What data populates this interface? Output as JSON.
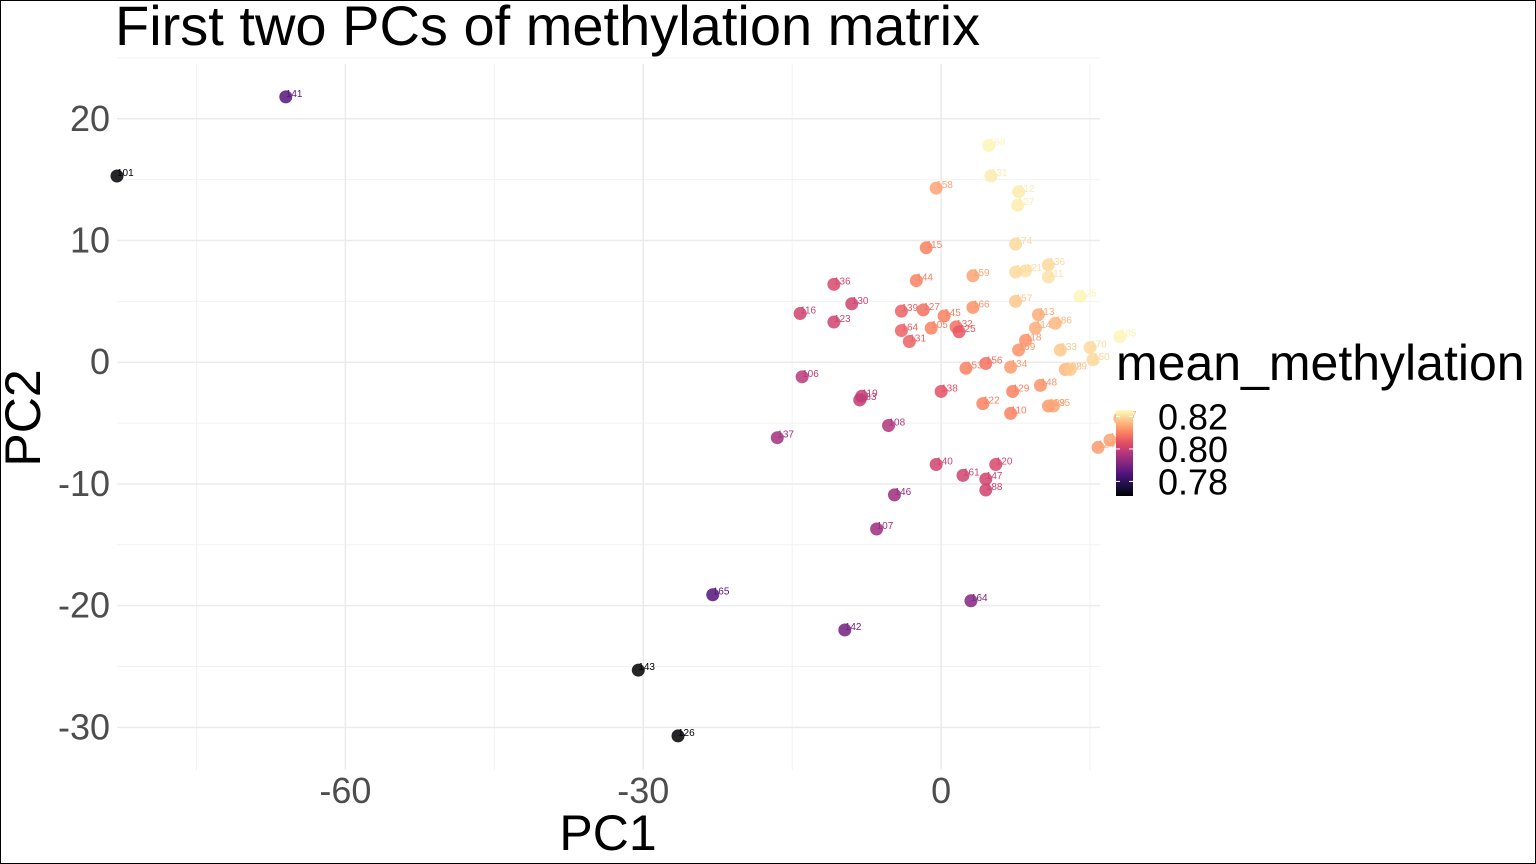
{
  "chart_data": {
    "type": "scatter",
    "title": "First two PCs of methylation matrix",
    "xlabel": "PC1",
    "ylabel": "PC2",
    "xlim": [
      -83,
      16
    ],
    "ylim": [
      -33.5,
      24.5
    ],
    "x_ticks": [
      -60,
      -30,
      0
    ],
    "y_ticks": [
      20,
      10,
      0,
      -10,
      -20,
      -30
    ],
    "grid": true,
    "legend": {
      "title": "mean_methylation",
      "position": "right",
      "range": [
        0.771,
        0.824
      ],
      "ticks": [
        0.82,
        0.8,
        0.78
      ],
      "tick_labels": [
        "0.82",
        "0.80",
        "0.78"
      ]
    },
    "points": [
      {
        "label": "141",
        "x": -66.0,
        "y": 21.8,
        "m": 0.785
      },
      {
        "label": "101",
        "x": -83.0,
        "y": 15.3,
        "m": 0.771
      },
      {
        "label": "143",
        "x": -30.5,
        "y": -25.3,
        "m": 0.771
      },
      {
        "label": "126",
        "x": -26.5,
        "y": -30.7,
        "m": 0.771
      },
      {
        "label": "165",
        "x": -23.0,
        "y": -19.1,
        "m": 0.785
      },
      {
        "label": "142",
        "x": -9.7,
        "y": -22.0,
        "m": 0.789
      },
      {
        "label": "164",
        "x": 3.0,
        "y": -19.6,
        "m": 0.791
      },
      {
        "label": "107",
        "x": -6.5,
        "y": -13.7,
        "m": 0.794
      },
      {
        "label": "146",
        "x": -4.7,
        "y": -10.9,
        "m": 0.794
      },
      {
        "label": "137",
        "x": -16.5,
        "y": -6.2,
        "m": 0.795
      },
      {
        "label": "108",
        "x": -5.3,
        "y": -5.2,
        "m": 0.797
      },
      {
        "label": "106",
        "x": -14.0,
        "y": -1.2,
        "m": 0.798
      },
      {
        "label": "119",
        "x": -8.0,
        "y": -2.8,
        "m": 0.8
      },
      {
        "label": "183",
        "x": -8.2,
        "y": -3.1,
        "m": 0.799
      },
      {
        "label": "116",
        "x": -14.2,
        "y": 4.0,
        "m": 0.801
      },
      {
        "label": "123",
        "x": -10.8,
        "y": 3.3,
        "m": 0.801
      },
      {
        "label": "136",
        "x": -10.8,
        "y": 6.4,
        "m": 0.802
      },
      {
        "label": "130",
        "x": -9.0,
        "y": 4.8,
        "m": 0.801
      },
      {
        "label": "140",
        "x": -0.5,
        "y": -8.4,
        "m": 0.801
      },
      {
        "label": "161",
        "x": 2.2,
        "y": -9.3,
        "m": 0.801
      },
      {
        "label": "147",
        "x": 4.5,
        "y": -9.6,
        "m": 0.801
      },
      {
        "label": "188",
        "x": 4.5,
        "y": -10.5,
        "m": 0.801
      },
      {
        "label": "120",
        "x": 5.5,
        "y": -8.4,
        "m": 0.802
      },
      {
        "label": "138",
        "x": 0.0,
        "y": -2.4,
        "m": 0.804
      },
      {
        "label": "139",
        "x": -4.0,
        "y": 4.2,
        "m": 0.806
      },
      {
        "label": "127",
        "x": -1.8,
        "y": 4.3,
        "m": 0.808
      },
      {
        "label": "164",
        "x": -4.0,
        "y": 2.6,
        "m": 0.806
      },
      {
        "label": "131",
        "x": -3.2,
        "y": 1.7,
        "m": 0.806
      },
      {
        "label": "144",
        "x": -2.5,
        "y": 6.7,
        "m": 0.81
      },
      {
        "label": "115",
        "x": -1.5,
        "y": 9.4,
        "m": 0.81
      },
      {
        "label": "145",
        "x": 0.3,
        "y": 3.8,
        "m": 0.81
      },
      {
        "label": "105",
        "x": -1.0,
        "y": 2.8,
        "m": 0.81
      },
      {
        "label": "132",
        "x": 1.5,
        "y": 2.9,
        "m": 0.808
      },
      {
        "label": "125",
        "x": 1.8,
        "y": 2.5,
        "m": 0.805
      },
      {
        "label": "166",
        "x": 3.2,
        "y": 4.5,
        "m": 0.812
      },
      {
        "label": "158",
        "x": -0.5,
        "y": 14.3,
        "m": 0.814
      },
      {
        "label": "159",
        "x": 3.2,
        "y": 7.1,
        "m": 0.814
      },
      {
        "label": "156",
        "x": 4.5,
        "y": -0.1,
        "m": 0.808
      },
      {
        "label": "153",
        "x": 2.5,
        "y": -0.5,
        "m": 0.81
      },
      {
        "label": "134",
        "x": 7.0,
        "y": -0.4,
        "m": 0.813
      },
      {
        "label": "129",
        "x": 7.2,
        "y": -2.4,
        "m": 0.81
      },
      {
        "label": "122",
        "x": 4.2,
        "y": -3.4,
        "m": 0.81
      },
      {
        "label": "110",
        "x": 7.0,
        "y": -4.2,
        "m": 0.81
      },
      {
        "label": "169",
        "x": 7.8,
        "y": 1.0,
        "m": 0.812
      },
      {
        "label": "148",
        "x": 10.0,
        "y": -1.9,
        "m": 0.812
      },
      {
        "label": "109",
        "x": 10.8,
        "y": -3.6,
        "m": 0.813
      },
      {
        "label": "135",
        "x": 11.3,
        "y": -3.6,
        "m": 0.814
      },
      {
        "label": "118",
        "x": 8.5,
        "y": 1.8,
        "m": 0.812
      },
      {
        "label": "114",
        "x": 9.5,
        "y": 2.8,
        "m": 0.815
      },
      {
        "label": "113",
        "x": 9.8,
        "y": 3.9,
        "m": 0.815
      },
      {
        "label": "186",
        "x": 11.5,
        "y": 3.2,
        "m": 0.816
      },
      {
        "label": "133",
        "x": 12.0,
        "y": 1.0,
        "m": 0.818
      },
      {
        "label": "108",
        "x": 12.5,
        "y": -0.6,
        "m": 0.816
      },
      {
        "label": "129",
        "x": 13.0,
        "y": -0.6,
        "m": 0.818
      },
      {
        "label": "170",
        "x": 15.0,
        "y": 1.2,
        "m": 0.82
      },
      {
        "label": "150",
        "x": 15.3,
        "y": 0.2,
        "m": 0.82
      },
      {
        "label": "157",
        "x": 7.5,
        "y": 5.0,
        "m": 0.818
      },
      {
        "label": "118",
        "x": 17.0,
        "y": -6.4,
        "m": 0.814
      },
      {
        "label": "167",
        "x": 18.0,
        "y": -4.6,
        "m": 0.815
      },
      {
        "label": "124",
        "x": 15.8,
        "y": -7.0,
        "m": 0.813
      },
      {
        "label": "174",
        "x": 7.5,
        "y": 9.7,
        "m": 0.82
      },
      {
        "label": "121",
        "x": 8.5,
        "y": 7.5,
        "m": 0.821
      },
      {
        "label": "103",
        "x": 7.5,
        "y": 7.4,
        "m": 0.82
      },
      {
        "label": "136",
        "x": 10.8,
        "y": 8.0,
        "m": 0.82
      },
      {
        "label": "111",
        "x": 10.8,
        "y": 7.0,
        "m": 0.821
      },
      {
        "label": "112",
        "x": 7.8,
        "y": 14.0,
        "m": 0.822
      },
      {
        "label": "127",
        "x": 7.7,
        "y": 12.9,
        "m": 0.822
      },
      {
        "label": "131",
        "x": 5.0,
        "y": 15.3,
        "m": 0.822
      },
      {
        "label": "168",
        "x": 4.8,
        "y": 17.8,
        "m": 0.823
      },
      {
        "label": "125",
        "x": 14.0,
        "y": 5.4,
        "m": 0.823
      },
      {
        "label": "185",
        "x": 18.0,
        "y": 2.1,
        "m": 0.823
      }
    ]
  }
}
